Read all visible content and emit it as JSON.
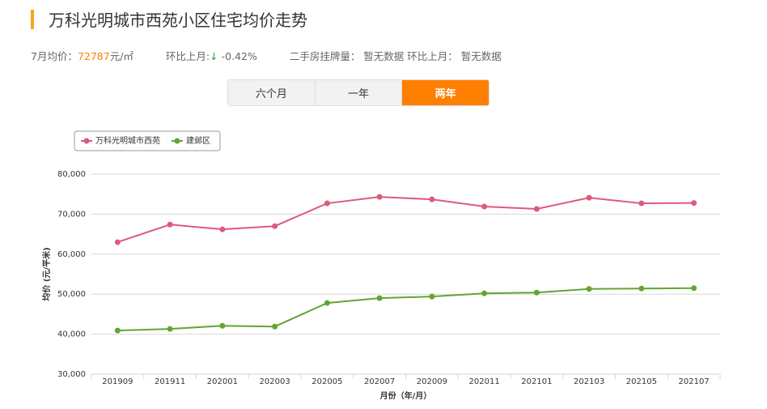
{
  "title": "万科光明城市西苑小区住宅均价走势",
  "stats": {
    "month_label": "7月均价：",
    "price": "72787",
    "unit": "元/㎡",
    "mom_label": "环比上月:",
    "mom_arrow": "↓",
    "mom_value": "-0.42%",
    "listing": "二手房挂牌量： 暂无数据 环比上月： 暂无数据"
  },
  "tabs": [
    "六个月",
    "一年",
    "两年"
  ],
  "active_tab": 2,
  "chart_data": {
    "type": "line",
    "categories": [
      "201909",
      "201911",
      "202001",
      "202003",
      "202005",
      "202007",
      "202009",
      "202011",
      "202101",
      "202103",
      "202105",
      "202107"
    ],
    "series": [
      {
        "name": "万科光明城市西苑",
        "color": "#dd5a7a",
        "values": [
          63000,
          67400,
          66200,
          67000,
          72700,
          74300,
          73700,
          71900,
          71300,
          74100,
          72700,
          72787
        ]
      },
      {
        "name": "建邺区",
        "color": "#62a632",
        "values": [
          40900,
          41300,
          42100,
          41900,
          47800,
          49000,
          49400,
          50200,
          50400,
          51300,
          51400,
          51500
        ]
      }
    ],
    "ylim": [
      30000,
      80000
    ],
    "yticks": [
      {
        "value": 30000,
        "label": "30,000"
      },
      {
        "value": 40000,
        "label": "40,000"
      },
      {
        "value": 50000,
        "label": "50,000"
      },
      {
        "value": 60000,
        "label": "60,000"
      },
      {
        "value": 70000,
        "label": "70,000"
      },
      {
        "value": 80000,
        "label": "80,000"
      }
    ],
    "xlabel": "月份（年/月）",
    "ylabel": "均价 (元/平米)",
    "grid": true,
    "legend": "top-left"
  }
}
